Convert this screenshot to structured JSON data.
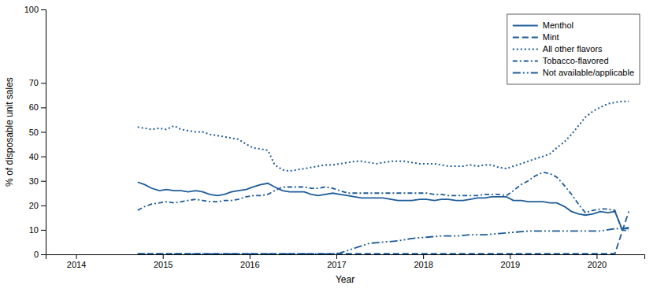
{
  "chart_data": {
    "type": "line",
    "xlabel": "Year",
    "ylabel": "% of disposable unit sales",
    "color": "#1F5C99",
    "xlim": [
      2013.65,
      2020.55
    ],
    "xticks": [
      2014,
      2015,
      2016,
      2017,
      2018,
      2019,
      2020
    ],
    "ylim": [
      0,
      100
    ],
    "yticks": [
      0,
      10,
      20,
      30,
      40,
      50,
      60,
      70,
      100
    ],
    "grid": false,
    "legend": "upper right",
    "series": [
      {
        "name": "Menthol",
        "line_style": "solid",
        "x": [
          2014.71,
          2014.79,
          2014.87,
          2014.96,
          2015.04,
          2015.13,
          2015.21,
          2015.29,
          2015.38,
          2015.46,
          2015.54,
          2015.63,
          2015.71,
          2015.79,
          2015.87,
          2015.96,
          2016.04,
          2016.13,
          2016.21,
          2016.29,
          2016.38,
          2016.46,
          2016.54,
          2016.63,
          2016.71,
          2016.79,
          2016.87,
          2016.96,
          2017.04,
          2017.13,
          2017.21,
          2017.29,
          2017.38,
          2017.46,
          2017.54,
          2017.63,
          2017.71,
          2017.79,
          2017.87,
          2017.96,
          2018.04,
          2018.13,
          2018.21,
          2018.29,
          2018.38,
          2018.46,
          2018.54,
          2018.63,
          2018.71,
          2018.79,
          2018.87,
          2018.96,
          2019.04,
          2019.13,
          2019.21,
          2019.29,
          2019.38,
          2019.46,
          2019.54,
          2019.63,
          2019.71,
          2019.79,
          2019.87,
          2019.96,
          2020.04,
          2020.13,
          2020.21,
          2020.29,
          2020.37
        ],
        "values": [
          29.5,
          28.5,
          27.0,
          26.0,
          26.5,
          26.0,
          26.0,
          25.5,
          26.0,
          25.5,
          24.5,
          24.0,
          24.5,
          25.5,
          26.0,
          26.5,
          27.5,
          28.5,
          29.0,
          27.5,
          26.0,
          25.5,
          25.5,
          25.5,
          24.5,
          24.0,
          24.5,
          25.0,
          24.5,
          24.0,
          23.5,
          23.0,
          23.0,
          23.0,
          23.0,
          22.5,
          22.0,
          22.0,
          22.0,
          22.5,
          22.5,
          22.0,
          22.5,
          22.5,
          22.0,
          22.0,
          22.5,
          23.0,
          23.0,
          23.5,
          23.5,
          23.5,
          22.0,
          22.0,
          21.5,
          21.5,
          21.5,
          21.0,
          21.0,
          19.5,
          17.5,
          16.5,
          16.0,
          16.5,
          17.5,
          17.0,
          17.5,
          10.5,
          11.0
        ]
      },
      {
        "name": "Mint",
        "line_style": "dashed",
        "x": [
          2014.71,
          2014.79,
          2014.87,
          2014.96,
          2015.04,
          2015.13,
          2015.21,
          2015.29,
          2015.38,
          2015.46,
          2015.54,
          2015.63,
          2015.71,
          2015.79,
          2015.87,
          2015.96,
          2016.04,
          2016.13,
          2016.21,
          2016.29,
          2016.38,
          2016.46,
          2016.54,
          2016.63,
          2016.71,
          2016.79,
          2016.87,
          2016.96,
          2017.04,
          2017.13,
          2017.21,
          2017.29,
          2017.38,
          2017.46,
          2017.54,
          2017.63,
          2017.71,
          2017.79,
          2017.87,
          2017.96,
          2018.04,
          2018.13,
          2018.21,
          2018.29,
          2018.38,
          2018.46,
          2018.54,
          2018.63,
          2018.71,
          2018.79,
          2018.87,
          2018.96,
          2019.04,
          2019.13,
          2019.21,
          2019.29,
          2019.38,
          2019.46,
          2019.54,
          2019.63,
          2019.71,
          2019.79,
          2019.87,
          2019.96,
          2020.04,
          2020.13,
          2020.21,
          2020.37
        ],
        "values": [
          0.3,
          0.3,
          0.3,
          0.3,
          0.3,
          0.3,
          0.3,
          0.3,
          0.3,
          0.3,
          0.3,
          0.3,
          0.3,
          0.3,
          0.3,
          0.3,
          0.3,
          0.3,
          0.3,
          0.3,
          0.3,
          0.3,
          0.3,
          0.3,
          0.3,
          0.3,
          0.3,
          0.3,
          0.3,
          0.3,
          0.3,
          0.3,
          0.3,
          0.3,
          0.3,
          0.3,
          0.3,
          0.3,
          0.3,
          0.3,
          0.3,
          0.3,
          0.3,
          0.3,
          0.3,
          0.3,
          0.3,
          0.3,
          0.3,
          0.3,
          0.3,
          0.3,
          0.3,
          0.3,
          0.3,
          0.3,
          0.3,
          0.3,
          0.3,
          0.3,
          0.3,
          0.3,
          0.3,
          0.3,
          0.3,
          0.3,
          0.3,
          17.5
        ]
      },
      {
        "name": "All other flavors",
        "line_style": "dotted",
        "x": [
          2014.71,
          2014.79,
          2014.87,
          2014.96,
          2015.04,
          2015.13,
          2015.21,
          2015.29,
          2015.38,
          2015.46,
          2015.54,
          2015.63,
          2015.71,
          2015.79,
          2015.87,
          2015.96,
          2016.04,
          2016.13,
          2016.21,
          2016.29,
          2016.38,
          2016.46,
          2016.54,
          2016.63,
          2016.71,
          2016.79,
          2016.87,
          2016.96,
          2017.04,
          2017.13,
          2017.21,
          2017.29,
          2017.38,
          2017.46,
          2017.54,
          2017.63,
          2017.71,
          2017.79,
          2017.87,
          2017.96,
          2018.04,
          2018.13,
          2018.21,
          2018.29,
          2018.38,
          2018.46,
          2018.54,
          2018.63,
          2018.71,
          2018.79,
          2018.87,
          2018.96,
          2019.04,
          2019.13,
          2019.21,
          2019.29,
          2019.38,
          2019.46,
          2019.54,
          2019.63,
          2019.71,
          2019.79,
          2019.87,
          2019.96,
          2020.04,
          2020.13,
          2020.21,
          2020.29,
          2020.37
        ],
        "values": [
          52.0,
          51.5,
          51.0,
          51.5,
          51.0,
          52.5,
          51.0,
          50.5,
          50.0,
          50.0,
          49.0,
          48.5,
          48.0,
          47.5,
          47.0,
          45.0,
          43.5,
          43.0,
          42.5,
          36.5,
          34.5,
          34.0,
          34.5,
          35.0,
          35.5,
          36.0,
          36.5,
          36.5,
          37.0,
          37.5,
          38.0,
          38.0,
          37.5,
          37.0,
          37.5,
          38.0,
          38.0,
          38.0,
          37.5,
          37.0,
          37.0,
          37.0,
          36.5,
          36.0,
          36.0,
          36.0,
          36.5,
          36.0,
          36.5,
          36.5,
          35.5,
          35.0,
          36.0,
          37.0,
          38.0,
          39.0,
          40.0,
          41.0,
          43.5,
          46.0,
          49.0,
          52.5,
          56.0,
          58.5,
          60.0,
          61.5,
          62.0,
          62.5,
          62.5
        ]
      },
      {
        "name": "Tobacco-flavored",
        "line_style": "dashdot",
        "x": [
          2014.71,
          2014.79,
          2014.87,
          2014.96,
          2015.04,
          2015.13,
          2015.21,
          2015.29,
          2015.38,
          2015.46,
          2015.54,
          2015.63,
          2015.71,
          2015.79,
          2015.87,
          2015.96,
          2016.04,
          2016.13,
          2016.21,
          2016.29,
          2016.38,
          2016.46,
          2016.54,
          2016.63,
          2016.71,
          2016.79,
          2016.87,
          2016.96,
          2017.04,
          2017.13,
          2017.21,
          2017.29,
          2017.38,
          2017.46,
          2017.54,
          2017.63,
          2017.71,
          2017.79,
          2017.87,
          2017.96,
          2018.04,
          2018.13,
          2018.21,
          2018.29,
          2018.38,
          2018.46,
          2018.54,
          2018.63,
          2018.71,
          2018.79,
          2018.87,
          2018.96,
          2019.04,
          2019.13,
          2019.21,
          2019.29,
          2019.38,
          2019.46,
          2019.54,
          2019.63,
          2019.71,
          2019.79,
          2019.87,
          2019.96,
          2020.04,
          2020.13,
          2020.21,
          2020.29,
          2020.37
        ],
        "values": [
          18.0,
          19.5,
          20.5,
          21.0,
          21.5,
          21.0,
          21.5,
          22.0,
          22.5,
          22.0,
          21.5,
          21.5,
          22.0,
          22.0,
          22.5,
          23.5,
          24.0,
          24.0,
          24.5,
          26.0,
          27.5,
          27.5,
          27.5,
          27.5,
          27.0,
          27.0,
          27.5,
          27.0,
          26.0,
          25.0,
          25.0,
          25.0,
          25.0,
          25.0,
          25.0,
          25.0,
          25.0,
          25.0,
          25.0,
          25.0,
          25.0,
          24.5,
          24.5,
          24.0,
          24.0,
          24.0,
          24.0,
          24.0,
          24.5,
          24.5,
          24.5,
          24.0,
          26.0,
          28.5,
          30.0,
          32.0,
          33.5,
          33.0,
          31.5,
          28.0,
          24.5,
          20.5,
          17.0,
          18.0,
          18.5,
          18.5,
          18.0,
          10.0,
          9.5
        ]
      },
      {
        "name": "Not available/applicable",
        "line_style": "dashdotdot",
        "x": [
          2014.71,
          2014.87,
          2015.04,
          2015.21,
          2015.38,
          2015.54,
          2015.71,
          2015.87,
          2016.04,
          2016.21,
          2016.38,
          2016.54,
          2016.71,
          2016.87,
          2017.04,
          2017.21,
          2017.38,
          2017.54,
          2017.71,
          2017.87,
          2018.04,
          2018.21,
          2018.38,
          2018.54,
          2018.71,
          2018.87,
          2019.04,
          2019.21,
          2019.38,
          2019.54,
          2019.71,
          2019.87,
          2020.04,
          2020.21,
          2020.37
        ],
        "values": [
          0.2,
          0.2,
          0.2,
          0.2,
          0.2,
          0.2,
          0.2,
          0.2,
          0.2,
          0.2,
          0.2,
          0.2,
          0.2,
          0.2,
          0.5,
          2.5,
          4.5,
          5.0,
          5.5,
          6.5,
          7.0,
          7.5,
          7.5,
          8.0,
          8.0,
          8.5,
          9.0,
          9.5,
          9.5,
          9.5,
          9.5,
          9.5,
          9.5,
          10.5,
          10.5
        ]
      }
    ]
  }
}
